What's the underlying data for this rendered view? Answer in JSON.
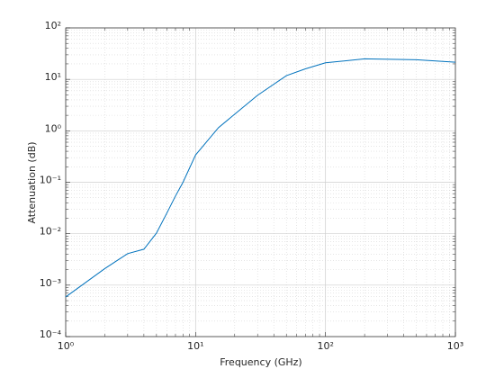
{
  "chart_data": {
    "type": "line",
    "xlabel": "Frequency (GHz)",
    "ylabel": "Attenuation (dB)",
    "x": [
      1,
      2,
      3,
      4,
      5,
      6,
      7,
      8,
      10,
      15,
      20,
      30,
      50,
      70,
      100,
      200,
      500,
      1000
    ],
    "series": [
      {
        "color": "#0072bd",
        "values": [
          0.00059,
          0.0021,
          0.0041,
          0.005,
          0.0103,
          0.025,
          0.054,
          0.1,
          0.34,
          1.15,
          2.1,
          4.9,
          11.8,
          16,
          21,
          25,
          24,
          21.5
        ]
      }
    ],
    "xscale": "log",
    "yscale": "log",
    "xlim": [
      1,
      1000
    ],
    "ylim": [
      0.0001,
      100
    ],
    "xticks": [
      {
        "value": 1,
        "label": "10⁰"
      },
      {
        "value": 10,
        "label": "10¹"
      },
      {
        "value": 100,
        "label": "10²"
      },
      {
        "value": 1000,
        "label": "10³"
      }
    ],
    "yticks": [
      {
        "value": 0.0001,
        "label": "10⁻⁴"
      },
      {
        "value": 0.001,
        "label": "10⁻³"
      },
      {
        "value": 0.01,
        "label": "10⁻²"
      },
      {
        "value": 0.1,
        "label": "10⁻¹"
      },
      {
        "value": 1,
        "label": "10⁰"
      },
      {
        "value": 10,
        "label": "10¹"
      },
      {
        "value": 100,
        "label": "10²"
      }
    ],
    "grid": true,
    "minor_grid": true
  }
}
